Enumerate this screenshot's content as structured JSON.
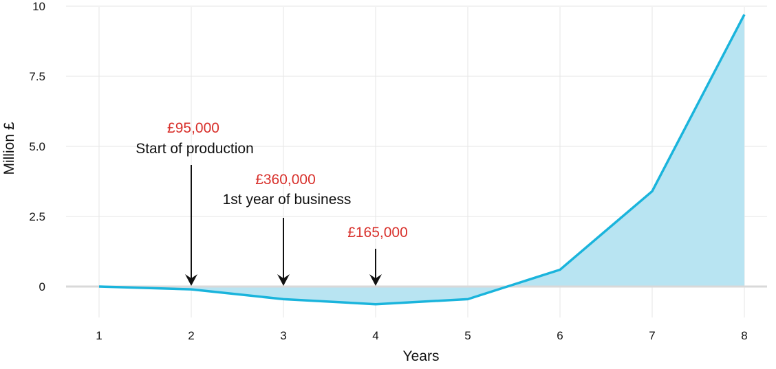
{
  "chart_data": {
    "type": "area",
    "xlabel": "Years",
    "ylabel": "Million £",
    "x": [
      1,
      2,
      3,
      4,
      5,
      6,
      7,
      8
    ],
    "ylim": [
      -1,
      10
    ],
    "xlim": [
      0.65,
      8.2
    ],
    "yticks": [
      0,
      2.5,
      5.0,
      7.5,
      10
    ],
    "ytick_labels": [
      "0",
      "2.5",
      "5.0",
      "7.5",
      "10"
    ],
    "xtick_labels": [
      "1",
      "2",
      "3",
      "4",
      "5",
      "6",
      "7",
      "8"
    ],
    "grid": true,
    "series": [
      {
        "values": [
          0,
          -0.1,
          -0.45,
          -0.63,
          -0.45,
          0.6,
          3.4,
          9.7
        ]
      }
    ],
    "annotations": [
      {
        "x": 2,
        "value": "£95,000",
        "label": "Start of production"
      },
      {
        "x": 3,
        "value": "£360,000",
        "label": "1st year of business"
      },
      {
        "x": 4,
        "value": "£165,000",
        "label": ""
      }
    ]
  },
  "colors": {
    "line": "#1ab4dc",
    "fill": "#b8e4f2",
    "grid": "#e6e6e6",
    "zero_line": "#d9d9d9",
    "annotation_value": "#d8302b",
    "arrow": "#111111"
  }
}
